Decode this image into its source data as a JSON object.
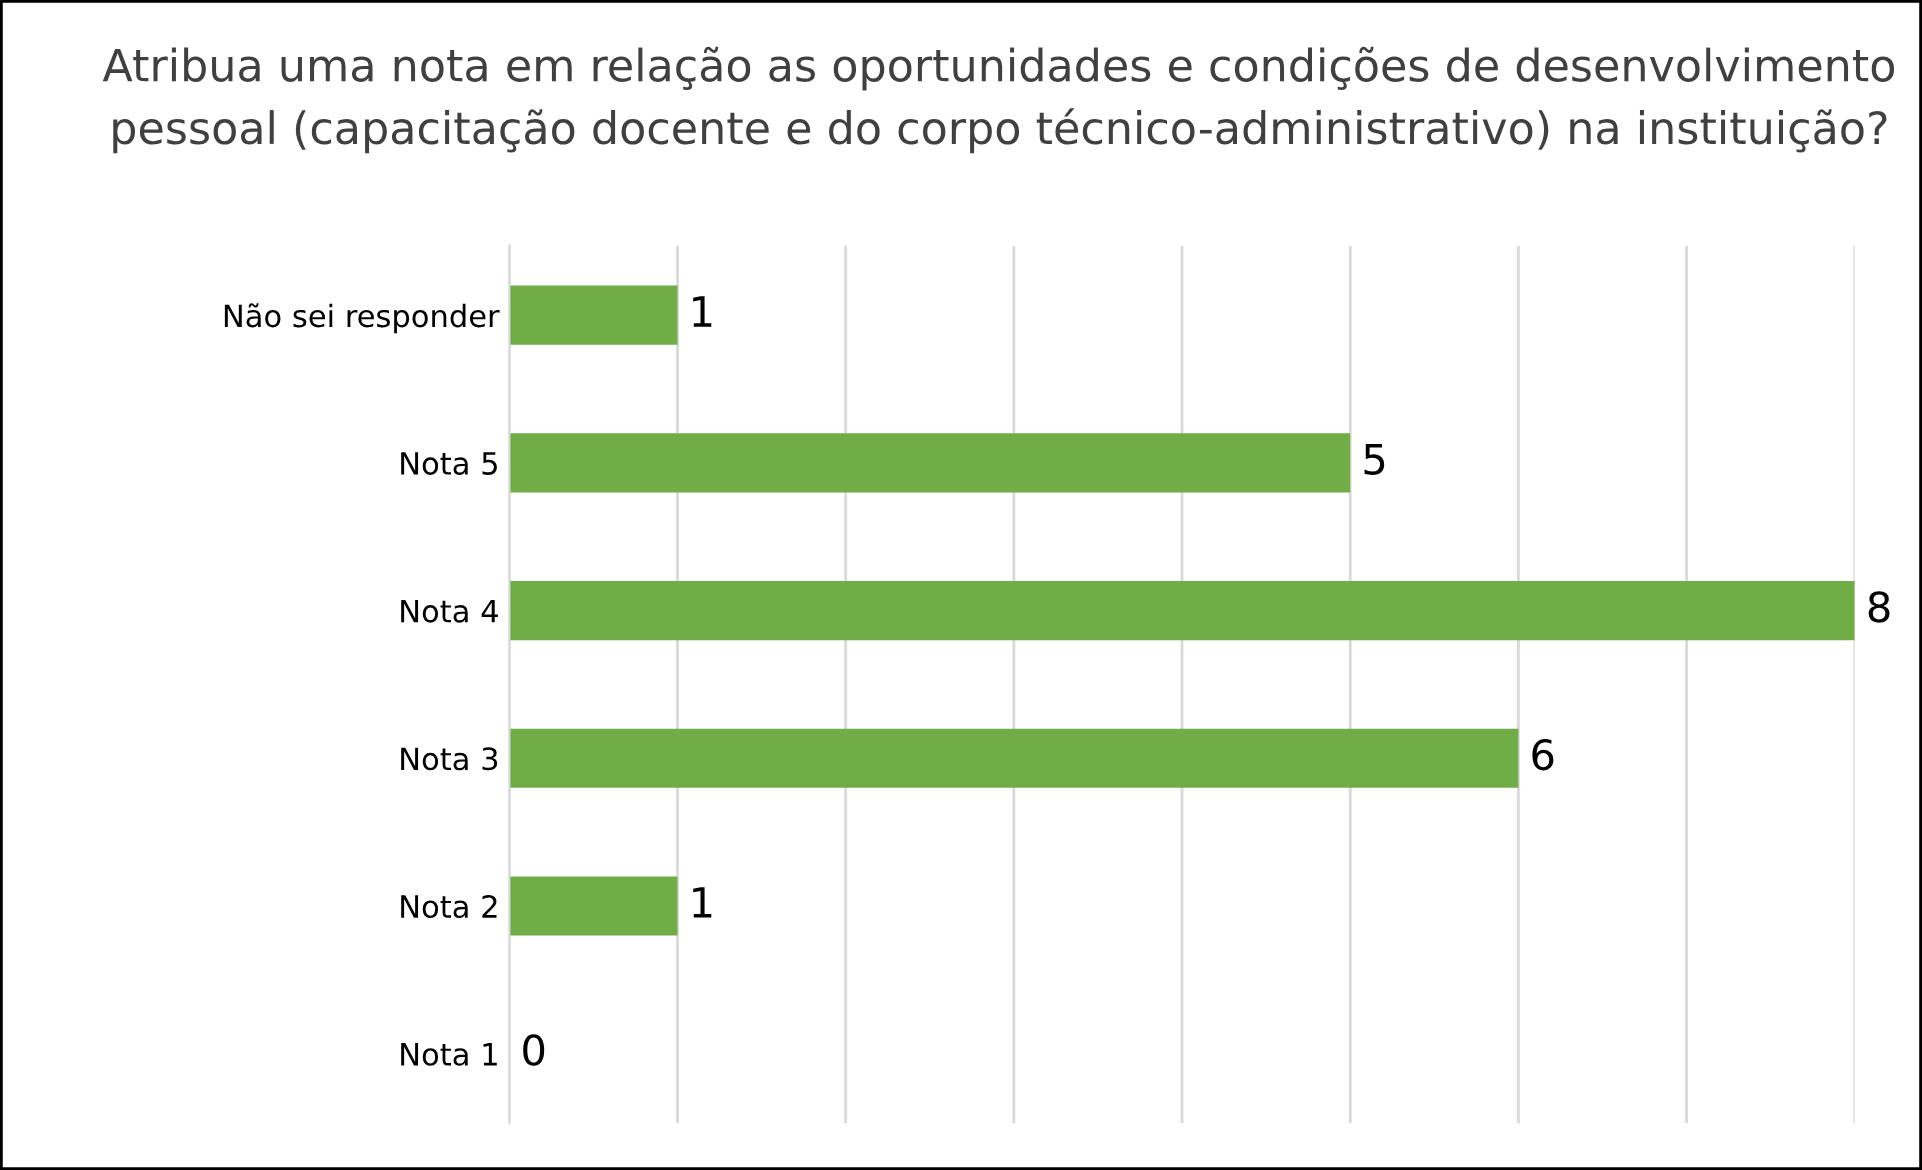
{
  "chart_data": {
    "type": "bar",
    "orientation": "horizontal",
    "title": "Atribua uma nota em relação as oportunidades e condições de desenvolvimento pessoal (capacitação docente e do corpo técnico-administrativo) na instituição?",
    "categories": [
      "Não sei responder",
      "Nota 5",
      "Nota 4",
      "Nota 3",
      "Nota 2",
      "Nota 1"
    ],
    "values": [
      1,
      5,
      8,
      6,
      1,
      0
    ],
    "color": "#70ad47",
    "xlim": [
      0,
      8
    ],
    "xticks": [
      {
        "value": 0,
        "label": null
      },
      {
        "value": 1,
        "label": null
      },
      {
        "value": 2,
        "label": null
      },
      {
        "value": 3,
        "label": null
      },
      {
        "value": 4,
        "label": null
      },
      {
        "value": 5,
        "label": null
      },
      {
        "value": 6,
        "label": null
      },
      {
        "value": 7,
        "label": null
      },
      {
        "value": 8,
        "label": null
      }
    ],
    "grid": "x",
    "tick_labels": "y",
    "data_labels": true
  }
}
